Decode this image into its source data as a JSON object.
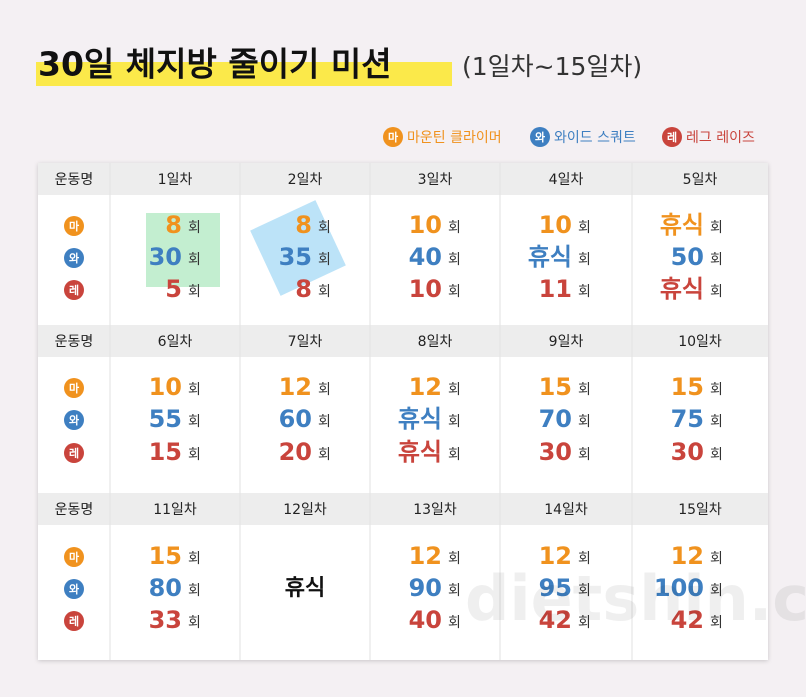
{
  "header": {
    "title": "30일 체지방 줄이기 미션",
    "subtitle": "(1일차~15일차)"
  },
  "legend": {
    "items": [
      {
        "badge": "마",
        "name": "마운틴 클라이머",
        "color": "#f0921e"
      },
      {
        "badge": "와",
        "name": "와이드 스쿼트",
        "color": "#3e7fc1"
      },
      {
        "badge": "레",
        "name": "레그 레이즈",
        "color": "#c9443c"
      }
    ]
  },
  "table": {
    "row_header": "운동명",
    "unit": "회",
    "days": [
      {
        "label": "1일차",
        "values": [
          8,
          30,
          5
        ]
      },
      {
        "label": "2일차",
        "values": [
          8,
          35,
          8
        ]
      },
      {
        "label": "3일차",
        "values": [
          10,
          40,
          10
        ]
      },
      {
        "label": "4일차",
        "values": [
          10,
          "휴식",
          11
        ]
      },
      {
        "label": "5일차",
        "values": [
          "휴식",
          50,
          "휴식"
        ]
      },
      {
        "label": "6일차",
        "values": [
          10,
          55,
          15
        ]
      },
      {
        "label": "7일차",
        "values": [
          12,
          60,
          20
        ]
      },
      {
        "label": "8일차",
        "values": [
          12,
          "휴식",
          "휴식"
        ]
      },
      {
        "label": "9일차",
        "values": [
          15,
          70,
          30
        ]
      },
      {
        "label": "10일차",
        "values": [
          15,
          75,
          30
        ]
      },
      {
        "label": "11일차",
        "values": [
          15,
          80,
          33
        ]
      },
      {
        "label": "12일차",
        "rest": "휴식"
      },
      {
        "label": "13일차",
        "values": [
          12,
          90,
          40
        ]
      },
      {
        "label": "14일차",
        "values": [
          12,
          95,
          42
        ]
      },
      {
        "label": "15일차",
        "values": [
          12,
          100,
          42
        ]
      }
    ]
  },
  "watermark": "dietshin.com"
}
